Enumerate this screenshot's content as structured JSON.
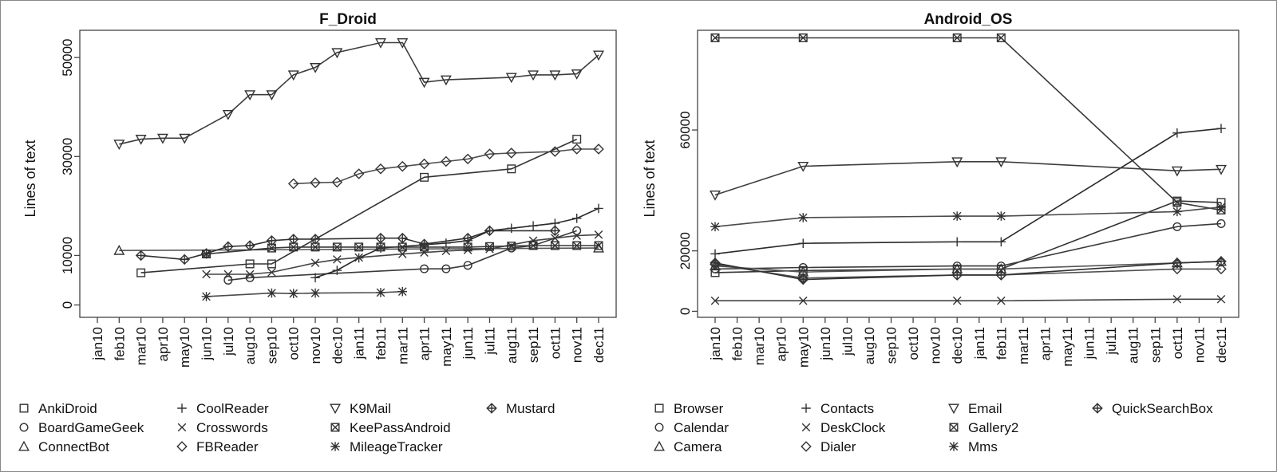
{
  "chart_data": [
    {
      "type": "line",
      "title": "F_Droid",
      "xlabel": "",
      "ylabel": "Lines of text",
      "categories": [
        "jan10",
        "feb10",
        "mar10",
        "apr10",
        "may10",
        "jun10",
        "jul10",
        "aug10",
        "sep10",
        "oct10",
        "nov10",
        "dec10",
        "jan11",
        "feb11",
        "mar11",
        "apr11",
        "may11",
        "jun11",
        "jul11",
        "aug11",
        "sep11",
        "oct11",
        "nov11",
        "dec11"
      ],
      "yticks": [
        0,
        10000,
        30000,
        50000
      ],
      "ylim": [
        -2500,
        55500
      ],
      "grid": false,
      "legend_position": "bottom",
      "series": [
        {
          "name": "AnkiDroid",
          "marker": "square",
          "points": [
            [
              2,
              6500
            ],
            [
              7,
              8300
            ],
            [
              8,
              8300
            ],
            [
              15,
              25800
            ],
            [
              19,
              27500
            ],
            [
              22,
              33500
            ]
          ]
        },
        {
          "name": "BoardGameGeek",
          "marker": "circle",
          "points": [
            [
              6,
              5000
            ],
            [
              7,
              5500
            ],
            [
              15,
              7300
            ],
            [
              16,
              7300
            ],
            [
              17,
              8000
            ],
            [
              19,
              11500
            ],
            [
              20,
              12000
            ],
            [
              22,
              15000
            ]
          ]
        },
        {
          "name": "ConnectBot",
          "marker": "triangle",
          "points": [
            [
              1,
              11000
            ],
            [
              23,
              11500
            ]
          ]
        },
        {
          "name": "CoolReader",
          "marker": "plus",
          "points": [
            [
              10,
              5500
            ],
            [
              11,
              7000
            ],
            [
              12,
              9500
            ],
            [
              13,
              11500
            ],
            [
              16,
              12500
            ],
            [
              17,
              13000
            ],
            [
              18,
              15000
            ],
            [
              19,
              15500
            ],
            [
              20,
              16000
            ],
            [
              21,
              16500
            ],
            [
              22,
              17500
            ],
            [
              23,
              19500
            ]
          ]
        },
        {
          "name": "Crosswords",
          "marker": "cross",
          "points": [
            [
              5,
              6200
            ],
            [
              6,
              6200
            ],
            [
              7,
              6200
            ],
            [
              8,
              6600
            ],
            [
              10,
              8500
            ],
            [
              11,
              9200
            ],
            [
              12,
              9600
            ],
            [
              14,
              10300
            ],
            [
              15,
              10600
            ],
            [
              16,
              10900
            ],
            [
              17,
              11100
            ],
            [
              18,
              11300
            ],
            [
              20,
              13000
            ],
            [
              21,
              13500
            ],
            [
              22,
              14000
            ],
            [
              23,
              14200
            ]
          ]
        },
        {
          "name": "FBReader",
          "marker": "diamond",
          "points": [
            [
              9,
              24500
            ],
            [
              10,
              24700
            ],
            [
              11,
              24800
            ],
            [
              12,
              26500
            ],
            [
              13,
              27500
            ],
            [
              14,
              28000
            ],
            [
              15,
              28500
            ],
            [
              16,
              29000
            ],
            [
              17,
              29500
            ],
            [
              18,
              30500
            ],
            [
              19,
              30700
            ],
            [
              21,
              31000
            ],
            [
              22,
              31500
            ],
            [
              23,
              31500
            ]
          ]
        },
        {
          "name": "K9Mail",
          "marker": "triangle-down",
          "points": [
            [
              1,
              32500
            ],
            [
              2,
              33500
            ],
            [
              3,
              33700
            ],
            [
              4,
              33700
            ],
            [
              6,
              38500
            ],
            [
              7,
              42500
            ],
            [
              8,
              42500
            ],
            [
              9,
              46500
            ],
            [
              10,
              48000
            ],
            [
              11,
              51000
            ],
            [
              13,
              53000
            ],
            [
              14,
              53000
            ],
            [
              15,
              45000
            ],
            [
              16,
              45500
            ],
            [
              19,
              46000
            ],
            [
              20,
              46500
            ],
            [
              21,
              46500
            ],
            [
              22,
              46700
            ],
            [
              23,
              50500
            ]
          ]
        },
        {
          "name": "KeePassAndroid",
          "marker": "boxcross",
          "points": [
            [
              5,
              10300
            ],
            [
              8,
              11500
            ],
            [
              9,
              11700
            ],
            [
              10,
              11700
            ],
            [
              11,
              11700
            ],
            [
              12,
              11700
            ],
            [
              13,
              11700
            ],
            [
              14,
              11700
            ],
            [
              15,
              11700
            ],
            [
              17,
              11700
            ],
            [
              18,
              11800
            ],
            [
              19,
              11900
            ],
            [
              20,
              12000
            ],
            [
              21,
              12000
            ],
            [
              22,
              12000
            ],
            [
              23,
              12000
            ]
          ]
        },
        {
          "name": "MileageTracker",
          "marker": "asterisk",
          "points": [
            [
              5,
              1700
            ],
            [
              8,
              2400
            ],
            [
              9,
              2300
            ],
            [
              10,
              2400
            ],
            [
              13,
              2500
            ],
            [
              14,
              2700
            ]
          ]
        },
        {
          "name": "Mustard",
          "marker": "diamondplus",
          "points": [
            [
              2,
              10000
            ],
            [
              4,
              9200
            ],
            [
              5,
              10400
            ],
            [
              6,
              11800
            ],
            [
              7,
              12000
            ],
            [
              8,
              13000
            ],
            [
              9,
              13300
            ],
            [
              10,
              13300
            ],
            [
              13,
              13500
            ],
            [
              14,
              13500
            ],
            [
              15,
              12300
            ],
            [
              17,
              13500
            ],
            [
              18,
              15000
            ],
            [
              21,
              15000
            ]
          ]
        }
      ]
    },
    {
      "type": "line",
      "title": "Android_OS",
      "xlabel": "",
      "ylabel": "Lines of text",
      "categories": [
        "jan10",
        "feb10",
        "mar10",
        "apr10",
        "may10",
        "jun10",
        "jul10",
        "aug10",
        "sep10",
        "oct10",
        "nov10",
        "dec10",
        "jan11",
        "feb11",
        "mar11",
        "apr11",
        "may11",
        "jun11",
        "jul11",
        "aug11",
        "sep11",
        "oct11",
        "nov11",
        "dec11"
      ],
      "yticks": [
        0,
        20000,
        60000
      ],
      "ylim": [
        -2000,
        93000
      ],
      "grid": false,
      "legend_position": "bottom",
      "series": [
        {
          "name": "Browser",
          "marker": "square",
          "points": [
            [
              0,
              12800
            ],
            [
              4,
              13500
            ],
            [
              11,
              14000
            ],
            [
              13,
              14000
            ],
            [
              21,
              36500
            ],
            [
              23,
              36000
            ]
          ]
        },
        {
          "name": "Calendar",
          "marker": "circle",
          "points": [
            [
              0,
              14000
            ],
            [
              4,
              14500
            ],
            [
              11,
              15000
            ],
            [
              13,
              15000
            ],
            [
              21,
              28000
            ],
            [
              23,
              29000
            ]
          ]
        },
        {
          "name": "Camera",
          "marker": "triangle",
          "points": [
            [
              0,
              15000
            ],
            [
              4,
              13000
            ],
            [
              11,
              14000
            ],
            [
              13,
              14000
            ],
            [
              21,
              16000
            ],
            [
              23,
              16500
            ]
          ]
        },
        {
          "name": "Contacts",
          "marker": "plus",
          "points": [
            [
              0,
              19000
            ],
            [
              4,
              22500
            ],
            [
              11,
              23000
            ],
            [
              13,
              23000
            ],
            [
              21,
              59000
            ],
            [
              23,
              60500
            ]
          ]
        },
        {
          "name": "DeskClock",
          "marker": "cross",
          "points": [
            [
              0,
              3500
            ],
            [
              4,
              3500
            ],
            [
              11,
              3500
            ],
            [
              13,
              3500
            ],
            [
              21,
              4000
            ],
            [
              23,
              4000
            ]
          ]
        },
        {
          "name": "Dialer",
          "marker": "diamond",
          "points": [
            [
              0,
              15500
            ],
            [
              4,
              11000
            ],
            [
              11,
              12000
            ],
            [
              13,
              12000
            ],
            [
              21,
              14000
            ],
            [
              23,
              14000
            ]
          ]
        },
        {
          "name": "Email",
          "marker": "triangle-down",
          "points": [
            [
              0,
              38500
            ],
            [
              4,
              48000
            ],
            [
              11,
              49500
            ],
            [
              13,
              49500
            ],
            [
              21,
              46500
            ],
            [
              23,
              47000
            ]
          ]
        },
        {
          "name": "Gallery2",
          "marker": "boxcross",
          "points": [
            [
              0,
              90500
            ],
            [
              4,
              90500
            ],
            [
              11,
              90500
            ],
            [
              13,
              90500
            ],
            [
              21,
              36000
            ],
            [
              23,
              33500
            ]
          ]
        },
        {
          "name": "Mms",
          "marker": "asterisk",
          "points": [
            [
              0,
              28000
            ],
            [
              4,
              31000
            ],
            [
              11,
              31500
            ],
            [
              13,
              31500
            ],
            [
              21,
              33000
            ],
            [
              23,
              34500
            ]
          ]
        },
        {
          "name": "QuickSearchBox",
          "marker": "diamondplus",
          "points": [
            [
              0,
              16000
            ],
            [
              4,
              10500
            ],
            [
              11,
              12000
            ],
            [
              13,
              12000
            ],
            [
              21,
              16000
            ],
            [
              23,
              16500
            ]
          ]
        }
      ]
    }
  ]
}
